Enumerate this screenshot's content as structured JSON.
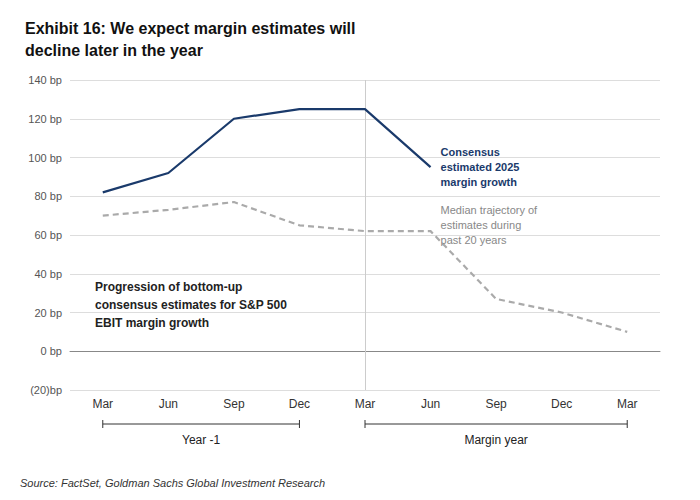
{
  "chart_data": {
    "type": "line",
    "title": "Exhibit 16: We expect margin estimates will\ndecline later in the year",
    "categories": [
      "Mar",
      "Jun",
      "Sep",
      "Dec",
      "Mar",
      "Jun",
      "Sep",
      "Dec",
      "Mar"
    ],
    "category_groups": [
      {
        "label": "Year -1",
        "count": 4
      },
      {
        "label": "Margin year",
        "count": 5
      }
    ],
    "series": [
      {
        "name": "Consensus\nestimated 2025\nmargin growth",
        "color": "#1a3a6b",
        "line_style": "solid",
        "values": [
          82,
          92,
          120,
          125,
          125,
          95,
          null,
          null,
          null
        ]
      },
      {
        "name": "Median trajectory of\nestimates during\npast 20 years",
        "color": "#aaaaaa",
        "line_style": "dashed",
        "values": [
          70,
          73,
          77,
          65,
          62,
          62,
          27,
          20,
          10
        ]
      }
    ],
    "ylim": [
      -20,
      140
    ],
    "yticks": [
      {
        "value": -20,
        "label": "(20)bp"
      },
      {
        "value": 0,
        "label": "0 bp"
      },
      {
        "value": 20,
        "label": "20 bp"
      },
      {
        "value": 40,
        "label": "40 bp"
      },
      {
        "value": 60,
        "label": "60 bp"
      },
      {
        "value": 80,
        "label": "80 bp"
      },
      {
        "value": 100,
        "label": "100 bp"
      },
      {
        "value": 120,
        "label": "120 bp"
      },
      {
        "value": 140,
        "label": "140 bp"
      }
    ],
    "grid": true,
    "annotations": [
      "Progression of bottom-up\nconsensus estimates for S&P 500\nEBIT margin growth"
    ],
    "source": "Source: FactSet, Goldman Sachs Global Investment Research"
  }
}
